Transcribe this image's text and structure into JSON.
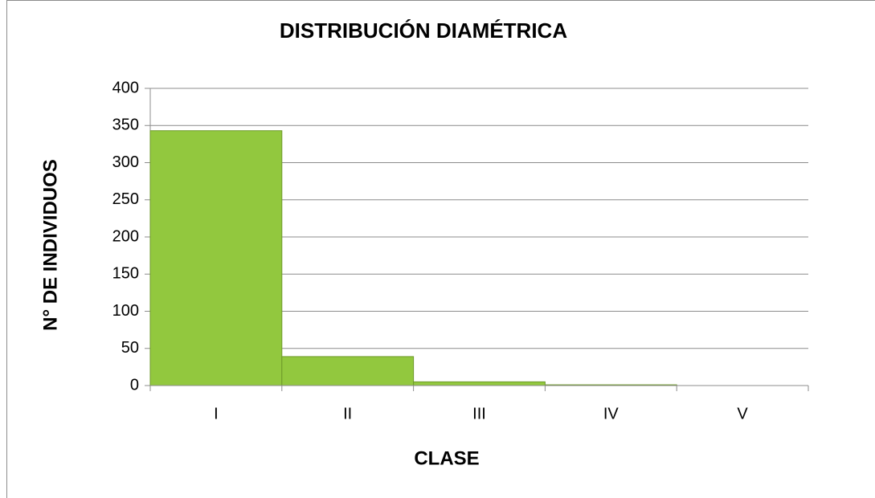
{
  "chart_data": {
    "type": "bar",
    "title": "DISTRIBUCIÓN DIAMÉTRICA",
    "x_label": "CLASE",
    "y_label": "N° DE INDIVIDUOS",
    "categories": [
      "I",
      "II",
      "III",
      "IV",
      "V"
    ],
    "values": [
      343,
      39,
      5,
      1,
      0
    ],
    "color": "#92c83e",
    "ylim": [
      0,
      400
    ],
    "yticks": [
      0,
      50,
      100,
      150,
      200,
      250,
      300,
      350,
      400
    ],
    "grid": true
  }
}
